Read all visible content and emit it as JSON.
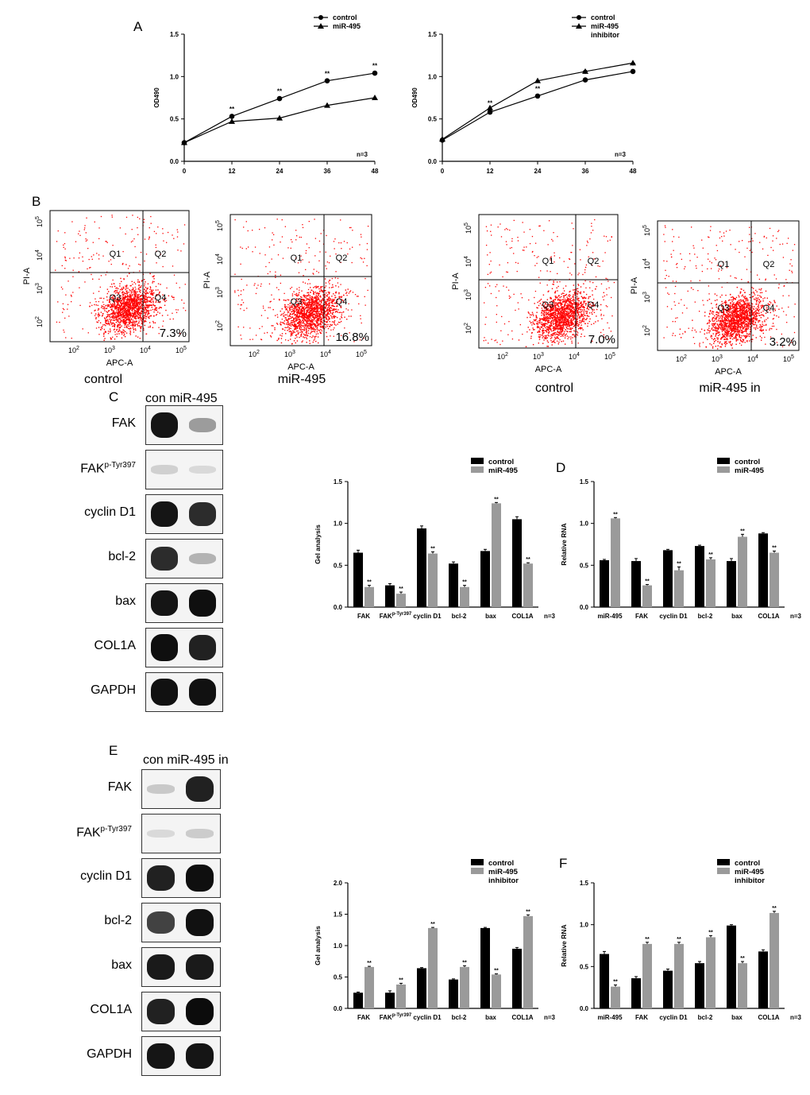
{
  "panels": {
    "A": "A",
    "B": "B",
    "C": "C",
    "D": "D",
    "E": "E",
    "F": "F"
  },
  "colors": {
    "control": "#000000",
    "treatment": "#9a9a9a",
    "dots": "#ff0000"
  },
  "chart_data": [
    {
      "id": "A1",
      "type": "line",
      "ylabel": "OD490",
      "xlabel": "",
      "x": [
        0,
        12,
        24,
        36,
        48
      ],
      "xticks": [
        "0",
        "12",
        "24",
        "36",
        "48"
      ],
      "yticks": [
        "0.0",
        "0.5",
        "1.0",
        "1.5"
      ],
      "ylim": [
        0,
        1.5
      ],
      "series": [
        {
          "name": "control",
          "marker": "circle",
          "values": [
            0.22,
            0.53,
            0.74,
            0.95,
            1.04
          ],
          "err": [
            0.02,
            0.02,
            0.02,
            0.02,
            0.02
          ]
        },
        {
          "name": "miR-495",
          "marker": "triangle",
          "values": [
            0.22,
            0.47,
            0.51,
            0.66,
            0.75
          ],
          "err": [
            0.01,
            0.01,
            0.01,
            0.02,
            0.01
          ]
        }
      ],
      "sig": [
        {
          "x": 12,
          "y": 0.59,
          "text": "**"
        },
        {
          "x": 24,
          "y": 0.8,
          "text": "**"
        },
        {
          "x": 36,
          "y": 1.01,
          "text": "**"
        },
        {
          "x": 48,
          "y": 1.1,
          "text": "**"
        }
      ],
      "note": "n=3"
    },
    {
      "id": "A2",
      "type": "line",
      "ylabel": "OD490",
      "xlabel": "",
      "x": [
        0,
        12,
        24,
        36,
        48
      ],
      "xticks": [
        "0",
        "12",
        "24",
        "36",
        "48"
      ],
      "yticks": [
        "0.0",
        "0.5",
        "1.0",
        "1.5"
      ],
      "ylim": [
        0,
        1.5
      ],
      "series": [
        {
          "name": "control",
          "marker": "circle",
          "values": [
            0.25,
            0.58,
            0.77,
            0.96,
            1.06
          ],
          "err": [
            0.01,
            0.01,
            0.02,
            0.02,
            0.02
          ]
        },
        {
          "name": "miR-495\ninhibitor",
          "marker": "triangle",
          "values": [
            0.26,
            0.63,
            0.95,
            1.06,
            1.16
          ],
          "err": [
            0.01,
            0.01,
            0.01,
            0.03,
            0.03
          ]
        }
      ],
      "sig": [
        {
          "x": 12,
          "y": 0.66,
          "text": "**"
        },
        {
          "x": 24,
          "y": 0.83,
          "text": "**"
        },
        {
          "x": 36,
          "y": 1.02,
          "text": "**"
        },
        {
          "x": 48,
          "y": 1.11,
          "text": "**"
        }
      ],
      "note": "n=3"
    },
    {
      "id": "C_bar",
      "type": "bar",
      "ylabel": "Gel analysis",
      "categories": [
        "FAK",
        "FAK^p-Tyr397",
        "cyclin D1",
        "bcl-2",
        "bax",
        "COL1A"
      ],
      "yticks": [
        "0.0",
        "0.5",
        "1.0",
        "1.5"
      ],
      "ylim": [
        0,
        1.5
      ],
      "series": [
        {
          "name": "control",
          "values": [
            0.65,
            0.26,
            0.94,
            0.52,
            0.67,
            1.05
          ],
          "err": [
            0.03,
            0.02,
            0.03,
            0.02,
            0.02,
            0.03
          ]
        },
        {
          "name": "miR-495",
          "values": [
            0.24,
            0.16,
            0.64,
            0.24,
            1.24,
            0.52
          ],
          "err": [
            0.02,
            0.02,
            0.02,
            0.02,
            0.01,
            0.01
          ]
        }
      ],
      "sig_on": "treatment",
      "sig_text": "**",
      "note": "n=3"
    },
    {
      "id": "D_bar",
      "type": "bar",
      "ylabel": "Relative RNA",
      "categories": [
        "miR-495",
        "FAK",
        "cyclin D1",
        "bcl-2",
        "bax",
        "COL1A"
      ],
      "yticks": [
        "0.0",
        "0.5",
        "1.0",
        "1.5"
      ],
      "ylim": [
        0,
        1.5
      ],
      "series": [
        {
          "name": "control",
          "values": [
            0.56,
            0.55,
            0.68,
            0.73,
            0.55,
            0.88
          ],
          "err": [
            0.01,
            0.03,
            0.01,
            0.01,
            0.03,
            0.01
          ]
        },
        {
          "name": "miR-495",
          "values": [
            1.06,
            0.26,
            0.44,
            0.57,
            0.84,
            0.65
          ],
          "err": [
            0.01,
            0.01,
            0.04,
            0.02,
            0.03,
            0.02
          ]
        }
      ],
      "sig_on": "treatment",
      "sig_text": "**",
      "note": "n=3"
    },
    {
      "id": "E_bar",
      "type": "bar",
      "ylabel": "Gel analysis",
      "categories": [
        "FAK",
        "FAK^p-Tyr397",
        "cyclin D1",
        "bcl-2",
        "bax",
        "COL1A"
      ],
      "yticks": [
        "0.0",
        "0.5",
        "1.0",
        "1.5",
        "2.0"
      ],
      "ylim": [
        0,
        2.0
      ],
      "series": [
        {
          "name": "control",
          "values": [
            0.25,
            0.25,
            0.64,
            0.46,
            1.28,
            0.95
          ],
          "err": [
            0.01,
            0.03,
            0.01,
            0.01,
            0.01,
            0.02
          ]
        },
        {
          "name": "miR-495\ninhibitor",
          "values": [
            0.66,
            0.38,
            1.28,
            0.66,
            0.54,
            1.47
          ],
          "err": [
            0.01,
            0.02,
            0.01,
            0.02,
            0.01,
            0.02
          ]
        }
      ],
      "sig_on": "treatment",
      "sig_text": "**",
      "note": "n=3"
    },
    {
      "id": "F_bar",
      "type": "bar",
      "ylabel": "Relative RNA",
      "categories": [
        "miR-495",
        "FAK",
        "cyclin D1",
        "bcl-2",
        "bax",
        "COL1A"
      ],
      "yticks": [
        "0.0",
        "0.5",
        "1.0",
        "1.5"
      ],
      "ylim": [
        0,
        1.5
      ],
      "series": [
        {
          "name": "control",
          "values": [
            0.65,
            0.36,
            0.45,
            0.54,
            0.99,
            0.68
          ],
          "err": [
            0.03,
            0.02,
            0.02,
            0.02,
            0.01,
            0.02
          ]
        },
        {
          "name": "miR-495\ninhibitor",
          "values": [
            0.26,
            0.77,
            0.77,
            0.85,
            0.54,
            1.14
          ],
          "err": [
            0.02,
            0.02,
            0.02,
            0.02,
            0.02,
            0.02
          ]
        }
      ],
      "sig_on": "treatment",
      "sig_text": "**",
      "note": "n=3"
    }
  ],
  "flow": {
    "xlabel": "APC-A",
    "ylabel": "PI-A",
    "quadrants": [
      "Q1",
      "Q2",
      "Q3",
      "Q4"
    ],
    "plots": [
      {
        "percent": "7.3%",
        "caption": "control"
      },
      {
        "percent": "16.8%",
        "caption": "miR-495"
      },
      {
        "percent": "7.0%",
        "caption": "control"
      },
      {
        "percent": "3.2%",
        "caption": "miR-495  in"
      }
    ]
  },
  "blotC": {
    "header": "con miR-495",
    "rows": [
      {
        "label": "FAK",
        "sup": "",
        "c": 0.95,
        "t": 0.35
      },
      {
        "label": "FAK",
        "sup": "p-Tyr397",
        "c": 0.12,
        "t": 0.08
      },
      {
        "label": "cyclin D1",
        "sup": "",
        "c": 0.95,
        "t": 0.85
      },
      {
        "label": "bcl-2",
        "sup": "",
        "c": 0.85,
        "t": 0.25
      },
      {
        "label": "bax",
        "sup": "",
        "c": 0.95,
        "t": 0.98
      },
      {
        "label": "COL1A",
        "sup": "",
        "c": 0.98,
        "t": 0.9
      },
      {
        "label": "GAPDH",
        "sup": "",
        "c": 0.97,
        "t": 0.97
      }
    ]
  },
  "blotE": {
    "header": "con miR-495 in",
    "rows": [
      {
        "label": "FAK",
        "sup": "",
        "c": 0.15,
        "t": 0.9
      },
      {
        "label": "FAK",
        "sup": "p-Tyr397",
        "c": 0.08,
        "t": 0.14
      },
      {
        "label": "cyclin D1",
        "sup": "",
        "c": 0.9,
        "t": 0.98
      },
      {
        "label": "bcl-2",
        "sup": "",
        "c": 0.75,
        "t": 0.97
      },
      {
        "label": "bax",
        "sup": "",
        "c": 0.93,
        "t": 0.93
      },
      {
        "label": "COL1A",
        "sup": "",
        "c": 0.9,
        "t": 0.99
      },
      {
        "label": "GAPDH",
        "sup": "",
        "c": 0.95,
        "t": 0.95
      }
    ]
  }
}
